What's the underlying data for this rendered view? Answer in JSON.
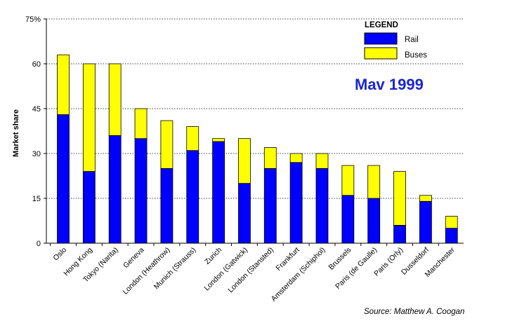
{
  "chart_data": {
    "type": "bar",
    "stacked": true,
    "title": "",
    "xlabel": "",
    "ylabel": "Market share",
    "ylim": [
      0,
      75
    ],
    "yticks": [
      "0",
      "15",
      "30",
      "45",
      "60",
      "75%"
    ],
    "ytick_values": [
      0,
      15,
      30,
      45,
      60,
      75
    ],
    "grid": "horizontal-dotted",
    "categories": [
      "Oslo",
      "Hong Kong",
      "Tokyo (Narita)",
      "Geneva",
      "London (Heathrow)",
      "Munich (Strauss)",
      "Zurich",
      "London (Gatwick)",
      "London (Stansted)",
      "Frankfurt",
      "Amsterdam (Schiphol)",
      "Brussels",
      "Paris (de Gaulle)",
      "Paris (Orly)",
      "Dusseldorf",
      "Manchester"
    ],
    "series": [
      {
        "name": "Rail",
        "color": "#0000ff",
        "values": [
          43,
          24,
          36,
          35,
          25,
          31,
          34,
          20,
          25,
          27,
          25,
          16,
          15,
          6,
          14,
          5
        ]
      },
      {
        "name": "Buses",
        "color": "#ffff00",
        "values": [
          20,
          36,
          24,
          10,
          16,
          8,
          1,
          15,
          7,
          3,
          5,
          10,
          11,
          18,
          2,
          4
        ]
      }
    ],
    "legend": {
      "title": "LEGEND",
      "placement": "top-right"
    },
    "annotations": [
      "Mav 1999",
      "Source: Matthew A. Coogan"
    ]
  }
}
